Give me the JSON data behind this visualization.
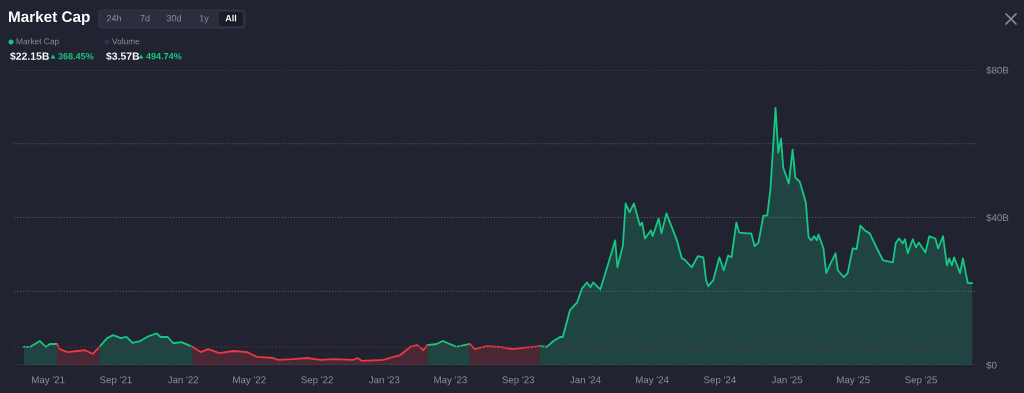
{
  "chart_data": {
    "type": "area",
    "title": "Market Cap",
    "annotations": [
      "24h",
      "7d",
      "30d",
      "1y",
      "All",
      "Market Cap",
      "Volume",
      "$22.15B",
      "368.45%",
      "$3.57B",
      "494.74%"
    ],
    "x": [
      "2021-03-18",
      "2021-03-29",
      "2021-04-16",
      "2021-04-27",
      "2021-05-04",
      "2021-05-17",
      "2021-05-22",
      "2021-06-05",
      "2021-06-23",
      "2021-07-07",
      "2021-07-21",
      "2021-08-02",
      "2021-08-16",
      "2021-08-27",
      "2021-09-10",
      "2021-09-20",
      "2021-10-01",
      "2021-10-15",
      "2021-10-30",
      "2021-11-14",
      "2021-11-21",
      "2021-12-04",
      "2021-12-14",
      "2021-12-29",
      "2022-01-18",
      "2022-02-02",
      "2022-02-15",
      "2022-03-08",
      "2022-04-02",
      "2022-04-27",
      "2022-05-15",
      "2022-06-13",
      "2022-06-22",
      "2022-07-19",
      "2022-08-14",
      "2022-09-07",
      "2022-09-30",
      "2022-11-06",
      "2022-11-13",
      "2022-11-22",
      "2022-12-30",
      "2023-01-18",
      "2023-01-30",
      "2023-02-17",
      "2023-03-02",
      "2023-03-13",
      "2023-03-20",
      "2023-04-06",
      "2023-04-17",
      "2023-05-12",
      "2023-06-05",
      "2023-06-14",
      "2023-07-06",
      "2023-07-29",
      "2023-08-22",
      "2023-09-05",
      "2023-10-10",
      "2023-10-23",
      "2023-11-04",
      "2023-11-16",
      "2023-11-21",
      "2023-12-04",
      "2023-12-17",
      "2023-12-26",
      "2024-01-04",
      "2024-01-10",
      "2024-01-15",
      "2024-01-28",
      "2024-02-15",
      "2024-02-24",
      "2024-02-28",
      "2024-03-09",
      "2024-03-14",
      "2024-03-21",
      "2024-03-29",
      "2024-04-09",
      "2024-04-13",
      "2024-04-18",
      "2024-04-29",
      "2024-05-02",
      "2024-05-13",
      "2024-05-18",
      "2024-05-27",
      "2024-06-15",
      "2024-06-24",
      "2024-06-29",
      "2024-07-12",
      "2024-07-23",
      "2024-08-02",
      "2024-08-07",
      "2024-08-11",
      "2024-08-20",
      "2024-08-31",
      "2024-09-08",
      "2024-09-16",
      "2024-09-22",
      "2024-10-01",
      "2024-10-06",
      "2024-10-21",
      "2024-10-28",
      "2024-11-03",
      "2024-11-10",
      "2024-11-19",
      "2024-11-26",
      "2024-12-02",
      "2024-12-11",
      "2024-12-16",
      "2024-12-21",
      "2024-12-25",
      "2025-01-04",
      "2025-01-11",
      "2025-01-16",
      "2025-01-24",
      "2025-02-04",
      "2025-02-09",
      "2025-02-14",
      "2025-02-19",
      "2025-02-24",
      "2025-02-27",
      "2025-03-08",
      "2025-03-13",
      "2025-03-22",
      "2025-03-30",
      "2025-04-03",
      "2025-04-14",
      "2025-04-21",
      "2025-04-30",
      "2025-05-07",
      "2025-05-14",
      "2025-05-22",
      "2025-05-31",
      "2025-06-13",
      "2025-06-24",
      "2025-07-12",
      "2025-07-17",
      "2025-07-23",
      "2025-07-30",
      "2025-08-03",
      "2025-08-08",
      "2025-08-17",
      "2025-08-23",
      "2025-08-28",
      "2025-09-09",
      "2025-09-16",
      "2025-09-27",
      "2025-10-02",
      "2025-10-11",
      "2025-10-18",
      "2025-10-22",
      "2025-10-27",
      "2025-10-31",
      "2025-11-11",
      "2025-11-16",
      "2025-11-25",
      "2025-12-03"
    ],
    "series": [
      {
        "color": "#16c784",
        "values": [
          4.9,
          4.9,
          6.5,
          4.9,
          5.7,
          5.7,
          null,
          null,
          null,
          null,
          null,
          4.9,
          7.3,
          8.1,
          7.3,
          7.6,
          6.0,
          6.5,
          7.8,
          8.6,
          7.6,
          7.6,
          5.9,
          6.2,
          4.9,
          null,
          null,
          null,
          null,
          null,
          null,
          null,
          null,
          null,
          null,
          null,
          null,
          null,
          null,
          null,
          null,
          null,
          null,
          null,
          null,
          null,
          5.4,
          5.7,
          6.5,
          4.9,
          5.7,
          null,
          null,
          null,
          null,
          null,
          5.1,
          4.9,
          6.5,
          7.6,
          7.6,
          14.9,
          17.0,
          20.8,
          22.4,
          21.1,
          22.4,
          20.5,
          29.2,
          33.8,
          26.5,
          32.4,
          43.8,
          41.4,
          43.8,
          37.8,
          38.6,
          34.3,
          36.5,
          34.9,
          39.7,
          35.7,
          41.1,
          33.8,
          28.9,
          28.6,
          26.5,
          29.5,
          29.2,
          23.0,
          21.4,
          23.0,
          29.2,
          25.7,
          29.7,
          29.2,
          38.6,
          35.9,
          35.7,
          35.7,
          32.2,
          33.2,
          40.5,
          40.5,
          48.1,
          69.7,
          57.6,
          61.4,
          53.5,
          49.2,
          58.4,
          50.8,
          49.7,
          44.1,
          34.6,
          33.8,
          34.9,
          33.8,
          35.4,
          31.6,
          24.9,
          27.8,
          30.3,
          25.7,
          23.8,
          24.9,
          31.6,
          31.4,
          37.8,
          36.5,
          35.7,
          31.6,
          28.4,
          27.8,
          33.0,
          34.3,
          33.0,
          34.1,
          30.3,
          34.1,
          31.9,
          33.2,
          30.5,
          34.9,
          34.3,
          31.6,
          34.9,
          27.0,
          28.9,
          27.0,
          29.2,
          24.9,
          28.9,
          22.2,
          22.2
        ]
      },
      {
        "color": "#ea3943",
        "values": [
          null,
          null,
          null,
          null,
          null,
          5.7,
          4.3,
          3.5,
          3.8,
          4.0,
          3.0,
          4.9,
          null,
          null,
          null,
          null,
          null,
          null,
          null,
          null,
          null,
          null,
          null,
          null,
          4.9,
          3.5,
          4.3,
          3.2,
          3.8,
          3.5,
          2.2,
          1.9,
          1.4,
          1.6,
          1.9,
          1.4,
          1.6,
          1.4,
          1.9,
          1.1,
          1.4,
          2.2,
          2.7,
          4.9,
          5.4,
          4.0,
          5.4,
          null,
          null,
          null,
          5.7,
          4.3,
          5.1,
          4.9,
          4.3,
          4.6,
          5.1,
          null,
          null,
          null,
          null,
          null,
          null,
          null,
          null,
          null,
          null,
          null,
          null,
          null,
          null,
          null,
          null,
          null,
          null,
          null,
          null,
          null,
          null,
          null,
          null,
          null,
          null,
          null,
          null,
          null,
          null,
          null,
          null,
          null,
          null,
          null,
          null,
          null,
          null,
          null,
          null,
          null,
          null,
          null,
          null,
          null,
          null,
          null,
          null,
          null,
          null,
          null,
          null,
          null,
          null,
          null,
          null,
          null,
          null,
          null,
          null,
          null,
          null,
          null,
          null,
          null,
          null,
          null,
          null,
          null,
          null,
          null,
          null,
          null,
          null,
          null,
          null,
          null,
          null,
          null,
          null,
          null,
          null,
          null,
          null,
          null,
          null,
          null,
          null,
          null,
          null,
          null,
          null,
          null,
          null,
          null,
          null,
          null,
          null
        ]
      }
    ],
    "ref_lines": [
      {
        "axis": "y",
        "value": 4.9,
        "color": "#5a2a36",
        "line_style": "dotted"
      }
    ],
    "xlim": [
      "2021-02-28",
      "2025-12-08"
    ],
    "xticks": [
      {
        "value": "2021-05-01",
        "label": "May '21"
      },
      {
        "value": "2021-09-01",
        "label": "Sep '21"
      },
      {
        "value": "2022-01-01",
        "label": "Jan '22"
      },
      {
        "value": "2022-05-01",
        "label": "May '22"
      },
      {
        "value": "2022-09-01",
        "label": "Sep '22"
      },
      {
        "value": "2023-01-01",
        "label": "Jan '23"
      },
      {
        "value": "2023-05-01",
        "label": "May '23"
      },
      {
        "value": "2023-09-01",
        "label": "Sep '23"
      },
      {
        "value": "2024-01-01",
        "label": "Jan '24"
      },
      {
        "value": "2024-05-01",
        "label": "May '24"
      },
      {
        "value": "2024-09-01",
        "label": "Sep '24"
      },
      {
        "value": "2025-01-01",
        "label": "Jan '25"
      },
      {
        "value": "2025-05-01",
        "label": "May '25"
      },
      {
        "value": "2025-09-01",
        "label": "Sep '25"
      }
    ],
    "ylim": [
      0,
      80
    ],
    "yticks": [
      {
        "value": 0,
        "label": "$0"
      },
      {
        "value": 20,
        "label": null
      },
      {
        "value": 40,
        "label": "$40B"
      },
      {
        "value": 60,
        "label": null
      },
      {
        "value": 80,
        "label": "$80B"
      }
    ],
    "grid": "y",
    "legend": false
  }
}
